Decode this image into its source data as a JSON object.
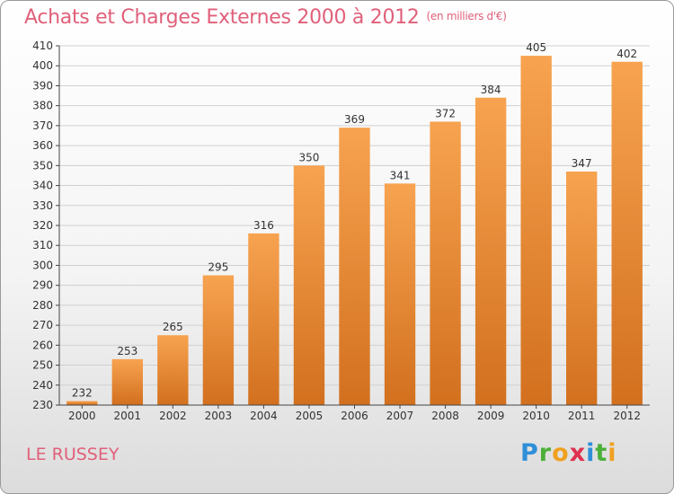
{
  "chart_data": {
    "type": "bar",
    "title": "Achats et Charges Externes 2000 à 2012",
    "subtitle": "(en milliers d'€)",
    "categories": [
      "2000",
      "2001",
      "2002",
      "2003",
      "2004",
      "2005",
      "2006",
      "2007",
      "2008",
      "2009",
      "2010",
      "2011",
      "2012"
    ],
    "values": [
      232,
      253,
      265,
      295,
      316,
      350,
      369,
      341,
      372,
      384,
      405,
      347,
      402
    ],
    "ylim": [
      230,
      410
    ],
    "ytick_step": 10,
    "grid": true,
    "bar_color": "#f39a45",
    "bar_color_dark": "#d6711e"
  },
  "footer": {
    "commune": "LE RUSSEY",
    "logo_text": "Proxiti"
  }
}
